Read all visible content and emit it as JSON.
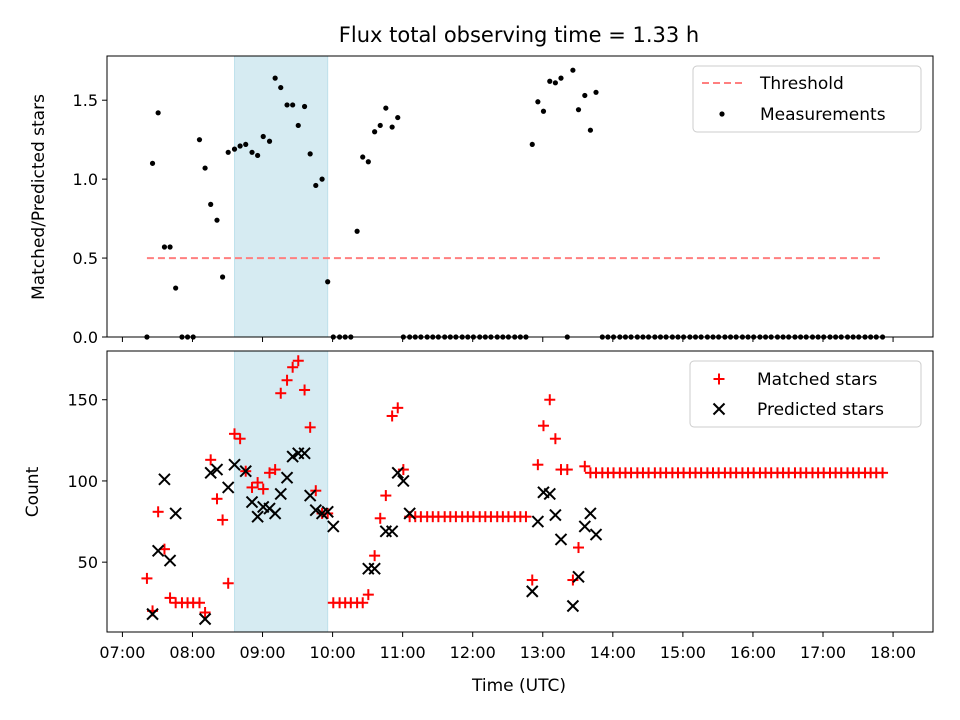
{
  "chart_data": [
    {
      "type": "scatter",
      "title": "Flux total observing time = 1.33 h",
      "xlabel": "",
      "ylabel": "Matched/Predicted stars",
      "x_unit": "hours UTC",
      "xlim": [
        6.78,
        18.57
      ],
      "ylim": [
        0.0,
        1.78
      ],
      "yticks": [
        0.0,
        0.5,
        1.0,
        1.5
      ],
      "ytick_labels": [
        "0.0",
        "0.5",
        "1.0",
        "1.5"
      ],
      "shaded_span": [
        8.6,
        9.93
      ],
      "legend_position": "upper right",
      "series": [
        {
          "name": "Threshold",
          "style": "dashed-line",
          "color": "#ff7f7f",
          "x": [
            7.35,
            17.85
          ],
          "y": [
            0.5,
            0.5
          ]
        },
        {
          "name": "Measurements",
          "style": "dots",
          "color": "#000000",
          "x": [
            7.35,
            7.43,
            7.51,
            7.6,
            7.68,
            7.76,
            7.85,
            7.93,
            8.01,
            8.1,
            8.18,
            8.26,
            8.35,
            8.43,
            8.51,
            8.6,
            8.68,
            8.76,
            8.85,
            8.93,
            9.01,
            9.1,
            9.18,
            9.26,
            9.35,
            9.43,
            9.51,
            9.6,
            9.68,
            9.76,
            9.85,
            9.93,
            10.01,
            10.1,
            10.18,
            10.26,
            10.35,
            10.43,
            10.51,
            10.6,
            10.68,
            10.76,
            10.85,
            10.93,
            11.01,
            11.1,
            11.18,
            11.26,
            11.35,
            11.43,
            11.51,
            11.6,
            11.68,
            11.76,
            11.85,
            11.93,
            12.01,
            12.1,
            12.18,
            12.26,
            12.35,
            12.43,
            12.51,
            12.6,
            12.68,
            12.76,
            12.85,
            12.93,
            13.01,
            13.1,
            13.18,
            13.26,
            13.35,
            13.43,
            13.51,
            13.6,
            13.68,
            13.76,
            13.85,
            13.93,
            14.01,
            14.1,
            14.18,
            14.26,
            14.35,
            14.43,
            14.51,
            14.6,
            14.68,
            14.76,
            14.85,
            14.93,
            15.01,
            15.1,
            15.18,
            15.26,
            15.35,
            15.43,
            15.51,
            15.6,
            15.68,
            15.76,
            15.85,
            15.93,
            16.01,
            16.1,
            16.18,
            16.26,
            16.35,
            16.43,
            16.51,
            16.6,
            16.68,
            16.76,
            16.85,
            16.93,
            17.01,
            17.1,
            17.18,
            17.26,
            17.35,
            17.43,
            17.51,
            17.6,
            17.68,
            17.76,
            17.85
          ],
          "y": [
            0.0,
            1.1,
            1.42,
            0.57,
            0.57,
            0.31,
            0.0,
            0.0,
            0.0,
            1.25,
            1.07,
            0.84,
            0.74,
            0.38,
            1.17,
            1.19,
            1.21,
            1.22,
            1.17,
            1.15,
            1.27,
            1.24,
            1.64,
            1.58,
            1.47,
            1.47,
            1.34,
            1.46,
            1.16,
            0.96,
            1.0,
            0.35,
            0.0,
            0.0,
            0.0,
            0.0,
            0.67,
            1.14,
            1.11,
            1.3,
            1.34,
            1.45,
            1.33,
            1.39,
            0.0,
            0.0,
            0.0,
            0.0,
            0.0,
            0.0,
            0.0,
            0.0,
            0.0,
            0.0,
            0.0,
            0.0,
            0.0,
            0.0,
            0.0,
            0.0,
            0.0,
            0.0,
            0.0,
            0.0,
            0.0,
            0.0,
            1.22,
            1.49,
            1.43,
            1.62,
            1.61,
            1.64,
            0.0,
            1.69,
            1.44,
            1.53,
            1.31,
            1.55,
            0.0,
            0.0,
            0.0,
            0.0,
            0.0,
            0.0,
            0.0,
            0.0,
            0.0,
            0.0,
            0.0,
            0.0,
            0.0,
            0.0,
            0.0,
            0.0,
            0.0,
            0.0,
            0.0,
            0.0,
            0.0,
            0.0,
            0.0,
            0.0,
            0.0,
            0.0,
            0.0,
            0.0,
            0.0,
            0.0,
            0.0,
            0.0,
            0.0,
            0.0,
            0.0,
            0.0,
            0.0,
            0.0,
            0.0,
            0.0,
            0.0,
            0.0,
            0.0,
            0.0,
            0.0,
            0.0,
            0.0,
            0.0,
            0.0
          ]
        }
      ]
    },
    {
      "type": "scatter",
      "title": "",
      "xlabel": "Time (UTC)",
      "ylabel": "Count",
      "x_unit": "hours UTC",
      "xlim": [
        6.78,
        18.57
      ],
      "ylim": [
        7,
        180
      ],
      "xticks": [
        7,
        8,
        9,
        10,
        11,
        12,
        13,
        14,
        15,
        16,
        17,
        18
      ],
      "xtick_labels": [
        "07:00",
        "08:00",
        "09:00",
        "10:00",
        "11:00",
        "12:00",
        "13:00",
        "14:00",
        "15:00",
        "16:00",
        "17:00",
        "18:00"
      ],
      "yticks": [
        50,
        100,
        150
      ],
      "ytick_labels": [
        "50",
        "100",
        "150"
      ],
      "shaded_span": [
        8.6,
        9.93
      ],
      "legend_position": "upper right",
      "series": [
        {
          "name": "Matched stars",
          "marker": "plus",
          "color": "#ff0000",
          "x": [
            7.35,
            7.43,
            7.51,
            7.6,
            7.68,
            7.76,
            7.85,
            7.93,
            8.01,
            8.1,
            8.18,
            8.26,
            8.35,
            8.43,
            8.51,
            8.6,
            8.68,
            8.76,
            8.85,
            8.93,
            9.01,
            9.1,
            9.18,
            9.26,
            9.35,
            9.43,
            9.51,
            9.6,
            9.68,
            9.76,
            9.85,
            9.93,
            10.01,
            10.1,
            10.18,
            10.26,
            10.35,
            10.43,
            10.51,
            10.6,
            10.68,
            10.76,
            10.85,
            10.93,
            11.01,
            11.1,
            11.18,
            11.26,
            11.35,
            11.43,
            11.51,
            11.6,
            11.68,
            11.76,
            11.85,
            11.93,
            12.01,
            12.1,
            12.18,
            12.26,
            12.35,
            12.43,
            12.51,
            12.6,
            12.68,
            12.76,
            12.85,
            12.93,
            13.01,
            13.1,
            13.18,
            13.26,
            13.35,
            13.43,
            13.51,
            13.6,
            13.68,
            13.76,
            13.85,
            13.93,
            14.01,
            14.1,
            14.18,
            14.26,
            14.35,
            14.43,
            14.51,
            14.6,
            14.68,
            14.76,
            14.85,
            14.93,
            15.01,
            15.1,
            15.18,
            15.26,
            15.35,
            15.43,
            15.51,
            15.6,
            15.68,
            15.76,
            15.85,
            15.93,
            16.01,
            16.1,
            16.18,
            16.26,
            16.35,
            16.43,
            16.51,
            16.6,
            16.68,
            16.76,
            16.85,
            16.93,
            17.01,
            17.1,
            17.18,
            17.26,
            17.35,
            17.43,
            17.51,
            17.6,
            17.68,
            17.76,
            17.85
          ],
          "y": [
            40,
            20,
            81,
            58,
            28,
            25,
            25,
            25,
            25,
            25,
            19,
            113,
            89,
            76,
            37,
            129,
            126,
            106,
            96,
            99,
            95,
            105,
            107,
            154,
            162,
            170,
            174,
            156,
            133,
            94,
            80,
            80,
            25,
            25,
            25,
            25,
            25,
            25,
            30,
            54,
            77,
            91,
            140,
            145,
            107,
            78,
            78,
            78,
            78,
            78,
            78,
            78,
            78,
            78,
            78,
            78,
            78,
            78,
            78,
            78,
            78,
            78,
            78,
            78,
            78,
            78,
            39,
            110,
            134,
            150,
            126,
            107,
            107,
            39,
            59,
            109,
            105,
            105,
            105,
            105,
            105,
            105,
            105,
            105,
            105,
            105,
            105,
            105,
            105,
            105,
            105,
            105,
            105,
            105,
            105,
            105,
            105,
            105,
            105,
            105,
            105,
            105,
            105,
            105,
            105,
            105,
            105,
            105,
            105,
            105,
            105,
            105,
            105,
            105,
            105,
            105,
            105,
            105,
            105,
            105,
            105,
            105,
            105,
            105,
            105,
            105,
            105
          ]
        },
        {
          "name": "Predicted stars",
          "marker": "x",
          "color": "#000000",
          "x": [
            7.43,
            7.51,
            7.6,
            7.68,
            7.76,
            8.18,
            8.26,
            8.35,
            8.51,
            8.6,
            8.76,
            8.85,
            8.93,
            9.01,
            9.1,
            9.18,
            9.26,
            9.35,
            9.43,
            9.51,
            9.6,
            9.68,
            9.76,
            9.85,
            9.93,
            10.01,
            10.51,
            10.6,
            10.76,
            10.85,
            10.93,
            11.01,
            11.1,
            12.85,
            12.93,
            13.01,
            13.1,
            13.18,
            13.26,
            13.43,
            13.51,
            13.6,
            13.68,
            13.76
          ],
          "y": [
            18,
            57,
            101,
            51,
            80,
            15,
            105,
            107,
            96,
            110,
            106,
            87,
            78,
            84,
            83,
            80,
            92,
            102,
            115,
            117,
            117,
            91,
            82,
            80,
            81,
            72,
            46,
            46,
            69,
            69,
            105,
            100,
            80,
            32,
            75,
            93,
            92,
            79,
            64,
            23,
            41,
            72,
            80,
            67
          ]
        }
      ]
    }
  ]
}
